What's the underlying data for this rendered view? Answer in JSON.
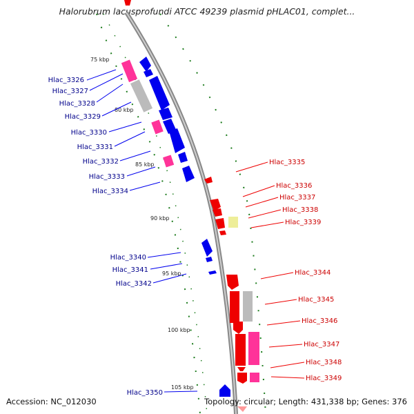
{
  "title": "Halorubrum lacusprofundi ATCC 49239 plasmid pHLAC01, complet...",
  "footer": {
    "accession": "Accession: NC_012030",
    "summary": "Topology: circular; Length: 431,338 bp; Genes: 376"
  },
  "colors": {
    "backbone": "#888888",
    "forward_gene": "#0000ee",
    "reverse_gene": "#ee0000",
    "rna_or_pink": "#ff3399",
    "gray_feature": "#bbbbbb",
    "yellow_feature": "#eeee99",
    "gc_track": "#1a7a1a"
  },
  "scale_ticks": [
    "75 kbp",
    "80 kbp",
    "85 kbp",
    "90 kbp",
    "95 kbp",
    "100 kbp",
    "105 kbp"
  ],
  "forward_labels": [
    "Hlac_3326",
    "Hlac_3327",
    "Hlac_3328",
    "Hlac_3329",
    "Hlac_3330",
    "Hlac_3331",
    "Hlac_3332",
    "Hlac_3333",
    "Hlac_3334",
    "Hlac_3340",
    "Hlac_3341",
    "Hlac_3342",
    "Hlac_3350"
  ],
  "reverse_labels": [
    "Hlac_3335",
    "Hlac_3336",
    "Hlac_3337",
    "Hlac_3338",
    "Hlac_3339",
    "Hlac_3344",
    "Hlac_3345",
    "Hlac_3346",
    "Hlac_3347",
    "Hlac_3348",
    "Hlac_3349"
  ]
}
